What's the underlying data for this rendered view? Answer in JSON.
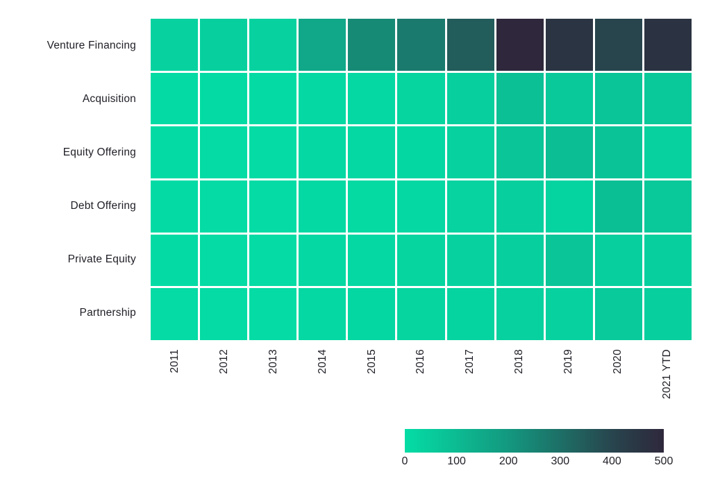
{
  "chart_data": {
    "type": "heatmap",
    "title": "",
    "xlabel": "",
    "ylabel": "",
    "grid": "white gaps between cells",
    "legend_position": "bottom-right horizontal colorbar",
    "text_color": "#1e1e26",
    "background_color": "#ffffff",
    "categories": [
      "2011",
      "2012",
      "2013",
      "2014",
      "2015",
      "2016",
      "2017",
      "2018",
      "2019",
      "2020",
      "2021 YTD"
    ],
    "rows": [
      "Venture Financing",
      "Acquisition",
      "Equity Offering",
      "Debt Offering",
      "Private Equity",
      "Partnership"
    ],
    "series": [
      {
        "name": "Venture Financing",
        "values": [
          32,
          38,
          33,
          155,
          235,
          272,
          345,
          500,
          458,
          400,
          460
        ]
      },
      {
        "name": "Acquisition",
        "values": [
          5,
          6,
          5,
          15,
          16,
          24,
          41,
          85,
          60,
          70,
          62
        ]
      },
      {
        "name": "Equity Offering",
        "values": [
          5,
          7,
          7,
          15,
          15,
          18,
          35,
          70,
          90,
          75,
          35
        ]
      },
      {
        "name": "Debt Offering",
        "values": [
          5,
          7,
          7,
          13,
          10,
          15,
          28,
          41,
          26,
          88,
          62
        ]
      },
      {
        "name": "Private Equity",
        "values": [
          5,
          7,
          7,
          15,
          15,
          24,
          32,
          41,
          70,
          41,
          38
        ]
      },
      {
        "name": "Partnership",
        "values": [
          7,
          7,
          7,
          15,
          18,
          24,
          26,
          35,
          32,
          55,
          41
        ]
      }
    ],
    "colorbar": {
      "min": 0,
      "max": 500,
      "tick_labels": [
        "0",
        "100",
        "200",
        "300",
        "400",
        "500"
      ],
      "tick_values": [
        0,
        100,
        200,
        300,
        400,
        500
      ],
      "gradient_stops": [
        {
          "value": 0,
          "color": "#04DDA5"
        },
        {
          "value": 100,
          "color": "#0CBB92"
        },
        {
          "value": 200,
          "color": "#13987F"
        },
        {
          "value": 300,
          "color": "#1D6F66"
        },
        {
          "value": 400,
          "color": "#28454E"
        },
        {
          "value": 460,
          "color": "#2B3342"
        },
        {
          "value": 500,
          "color": "#2F283C"
        }
      ]
    }
  }
}
